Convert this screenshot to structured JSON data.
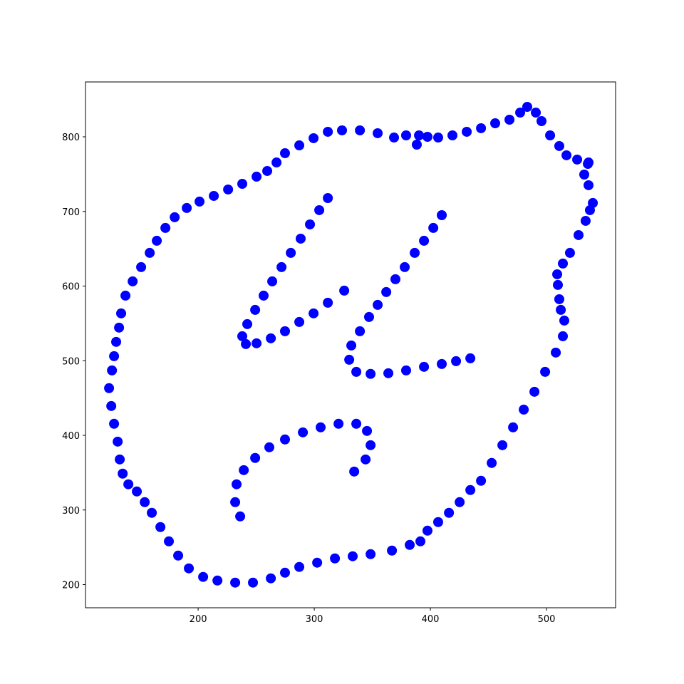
{
  "chart_data": {
    "type": "scatter",
    "color": "#0000ff",
    "x": [
      388.3,
      390.2,
      379.1,
      368.7,
      354.6,
      339.3,
      323.9,
      311.7,
      299.4,
      287.1,
      274.8,
      267.5,
      259.5,
      250.3,
      238,
      225.8,
      213.5,
      201.2,
      190.2,
      179.8,
      171.8,
      164.4,
      158.3,
      150.9,
      143.6,
      137.4,
      133.7,
      131.9,
      129.4,
      127.6,
      125.8,
      123.3,
      125.2,
      127.6,
      130.7,
      132.5,
      135,
      139.9,
      147.2,
      154,
      160.1,
      167.5,
      174.8,
      182.8,
      192,
      204.3,
      216.6,
      231.9,
      247.2,
      262.6,
      274.8,
      287.1,
      302.5,
      317.8,
      333.1,
      348.5,
      366.9,
      382.2,
      391.4,
      397.5,
      406.7,
      416,
      425.2,
      434.4,
      443.6,
      452.8,
      462,
      471.2,
      480.4,
      489.6,
      498.8,
      508,
      514.1,
      515.3,
      512.3,
      511,
      509.8,
      509.2,
      514.1,
      520.2,
      527.6,
      533.7,
      537.4,
      539.9,
      536.2,
      532.5,
      535.6,
      536.2,
      526.4,
      517.2,
      511,
      503.1,
      495.7,
      490.8,
      483.4,
      477.3,
      468.1,
      455.8,
      443.6,
      431.3,
      419,
      406.7,
      397.5,
      311.7,
      304.3,
      296.3,
      288.3,
      279.8,
      271.8,
      263.8,
      256.4,
      249.1,
      242.3,
      238,
      241.1,
      250.3,
      262.6,
      274.8,
      287.1,
      299.4,
      311.7,
      325.8,
      409.8,
      402.5,
      394.5,
      386.5,
      377.9,
      369.9,
      362,
      354.6,
      347.2,
      339.3,
      331.9,
      330.1,
      336.2,
      348.5,
      363.8,
      379.1,
      394.5,
      409.8,
      422.1,
      434.4,
      236.2,
      231.9,
      233.1,
      239.3,
      249.1,
      261.3,
      274.8,
      290.2,
      305.5,
      320.9,
      336.2,
      345.4,
      348.5,
      344.2,
      334.4
    ],
    "values": [
      789.5,
      801.9,
      801.9,
      799,
      804.8,
      808.6,
      808.6,
      806.7,
      798.1,
      788.5,
      778,
      765.6,
      754.2,
      746.6,
      737,
      729.4,
      720.8,
      713.2,
      704.6,
      692.2,
      677.9,
      660.7,
      644.5,
      625.4,
      606.3,
      587.2,
      563.4,
      544.3,
      525.2,
      506.1,
      487,
      463.2,
      439.3,
      415.5,
      391.6,
      367.7,
      348.7,
      334.4,
      324.8,
      310.5,
      296.2,
      277.1,
      258,
      238.9,
      221.8,
      210.3,
      205.5,
      202.7,
      202.7,
      208.4,
      216,
      223.7,
      229.4,
      235.1,
      238,
      240.8,
      245.6,
      253.2,
      258,
      272.3,
      283.8,
      296.2,
      310.5,
      326.7,
      339.1,
      363,
      386.8,
      410.7,
      434.5,
      458.4,
      485.1,
      510.9,
      532.8,
      553.8,
      568.1,
      582.4,
      601.5,
      615.8,
      630.2,
      644.5,
      668.3,
      687.4,
      701.7,
      711.3,
      735.1,
      749.4,
      763.7,
      765.6,
      769.5,
      775.2,
      787.6,
      801.9,
      821,
      832.4,
      840.1,
      832.4,
      822.9,
      818.1,
      811.5,
      806.7,
      801.9,
      799,
      800,
      717.9,
      701.7,
      682.6,
      663.5,
      644.5,
      625.4,
      606.3,
      587.2,
      568.1,
      549,
      532.8,
      522.3,
      523.3,
      530,
      539.5,
      551.9,
      563.4,
      577.7,
      593.9,
      695,
      677.9,
      660.7,
      644.5,
      625.4,
      609.2,
      592,
      574.8,
      558.6,
      539.5,
      520.4,
      501.3,
      485.1,
      482.3,
      483.2,
      487,
      491.8,
      495.6,
      499.4,
      503.2,
      291.4,
      310.5,
      334.4,
      353.4,
      369.7,
      384,
      394.5,
      404,
      410.7,
      415.5,
      415.5,
      405.9,
      386.8,
      367.7,
      351.5
    ],
    "xlim": [
      103,
      559.5
    ],
    "ylim": [
      169,
      873.5
    ],
    "xticks": [
      200,
      300,
      400,
      500
    ],
    "yticks": [
      200,
      300,
      400,
      500,
      600,
      700,
      800
    ]
  }
}
